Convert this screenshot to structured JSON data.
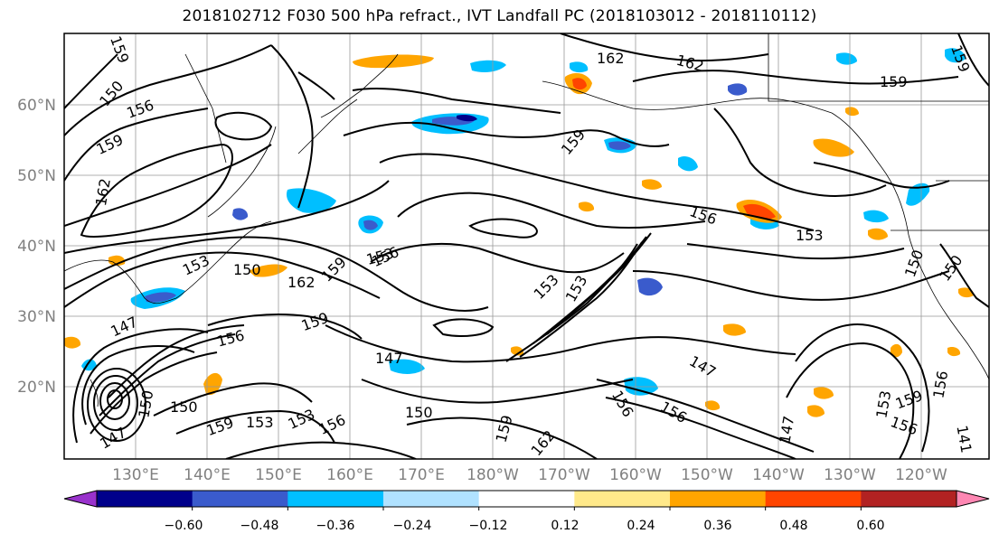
{
  "title": "2018102712 F030 500 hPa refract., IVT Landfall PC (2018103012 - 2018110112)",
  "map": {
    "lat_labels": [
      "60°N",
      "50°N",
      "40°N",
      "30°N",
      "20°N"
    ],
    "lon_labels": [
      "130°E",
      "140°E",
      "150°E",
      "160°E",
      "170°E",
      "180°W",
      "170°W",
      "160°W",
      "150°W",
      "140°W",
      "130°W",
      "120°W"
    ],
    "contour_labels": [
      {
        "text": "159"
      },
      {
        "text": "150"
      },
      {
        "text": "156"
      },
      {
        "text": "159"
      },
      {
        "text": "162"
      },
      {
        "text": "153"
      },
      {
        "text": "150"
      },
      {
        "text": "162"
      },
      {
        "text": "159"
      },
      {
        "text": "147"
      },
      {
        "text": "156"
      },
      {
        "text": "159"
      },
      {
        "text": "150"
      },
      {
        "text": "159"
      },
      {
        "text": "153"
      },
      {
        "text": "153"
      },
      {
        "text": "156"
      },
      {
        "text": "150"
      },
      {
        "text": "147"
      },
      {
        "text": "150"
      },
      {
        "text": "159"
      },
      {
        "text": "162"
      },
      {
        "text": "153"
      },
      {
        "text": "156"
      },
      {
        "text": "159"
      },
      {
        "text": "153"
      },
      {
        "text": "147"
      },
      {
        "text": "156"
      },
      {
        "text": "147"
      },
      {
        "text": "156"
      },
      {
        "text": "153"
      },
      {
        "text": "162"
      },
      {
        "text": "159"
      },
      {
        "text": "156"
      },
      {
        "text": "153"
      },
      {
        "text": "150"
      },
      {
        "text": "150"
      },
      {
        "text": "153"
      },
      {
        "text": "159"
      },
      {
        "text": "156"
      },
      {
        "text": "147"
      },
      {
        "text": "156"
      },
      {
        "text": "162"
      },
      {
        "text": "159"
      },
      {
        "text": "141"
      }
    ]
  },
  "colorbar": {
    "ticks": [
      "−0.60",
      "−0.48",
      "−0.36",
      "−0.24",
      "−0.12",
      "0.12",
      "0.24",
      "0.36",
      "0.48",
      "0.60"
    ],
    "colors": [
      "#9932cc",
      "#00008b",
      "#3a5bcc",
      "#00bfff",
      "#b0e2ff",
      "#ffffff",
      "#ffe98a",
      "#ffa500",
      "#ff4500",
      "#b22222",
      "#ff87b3"
    ]
  }
}
